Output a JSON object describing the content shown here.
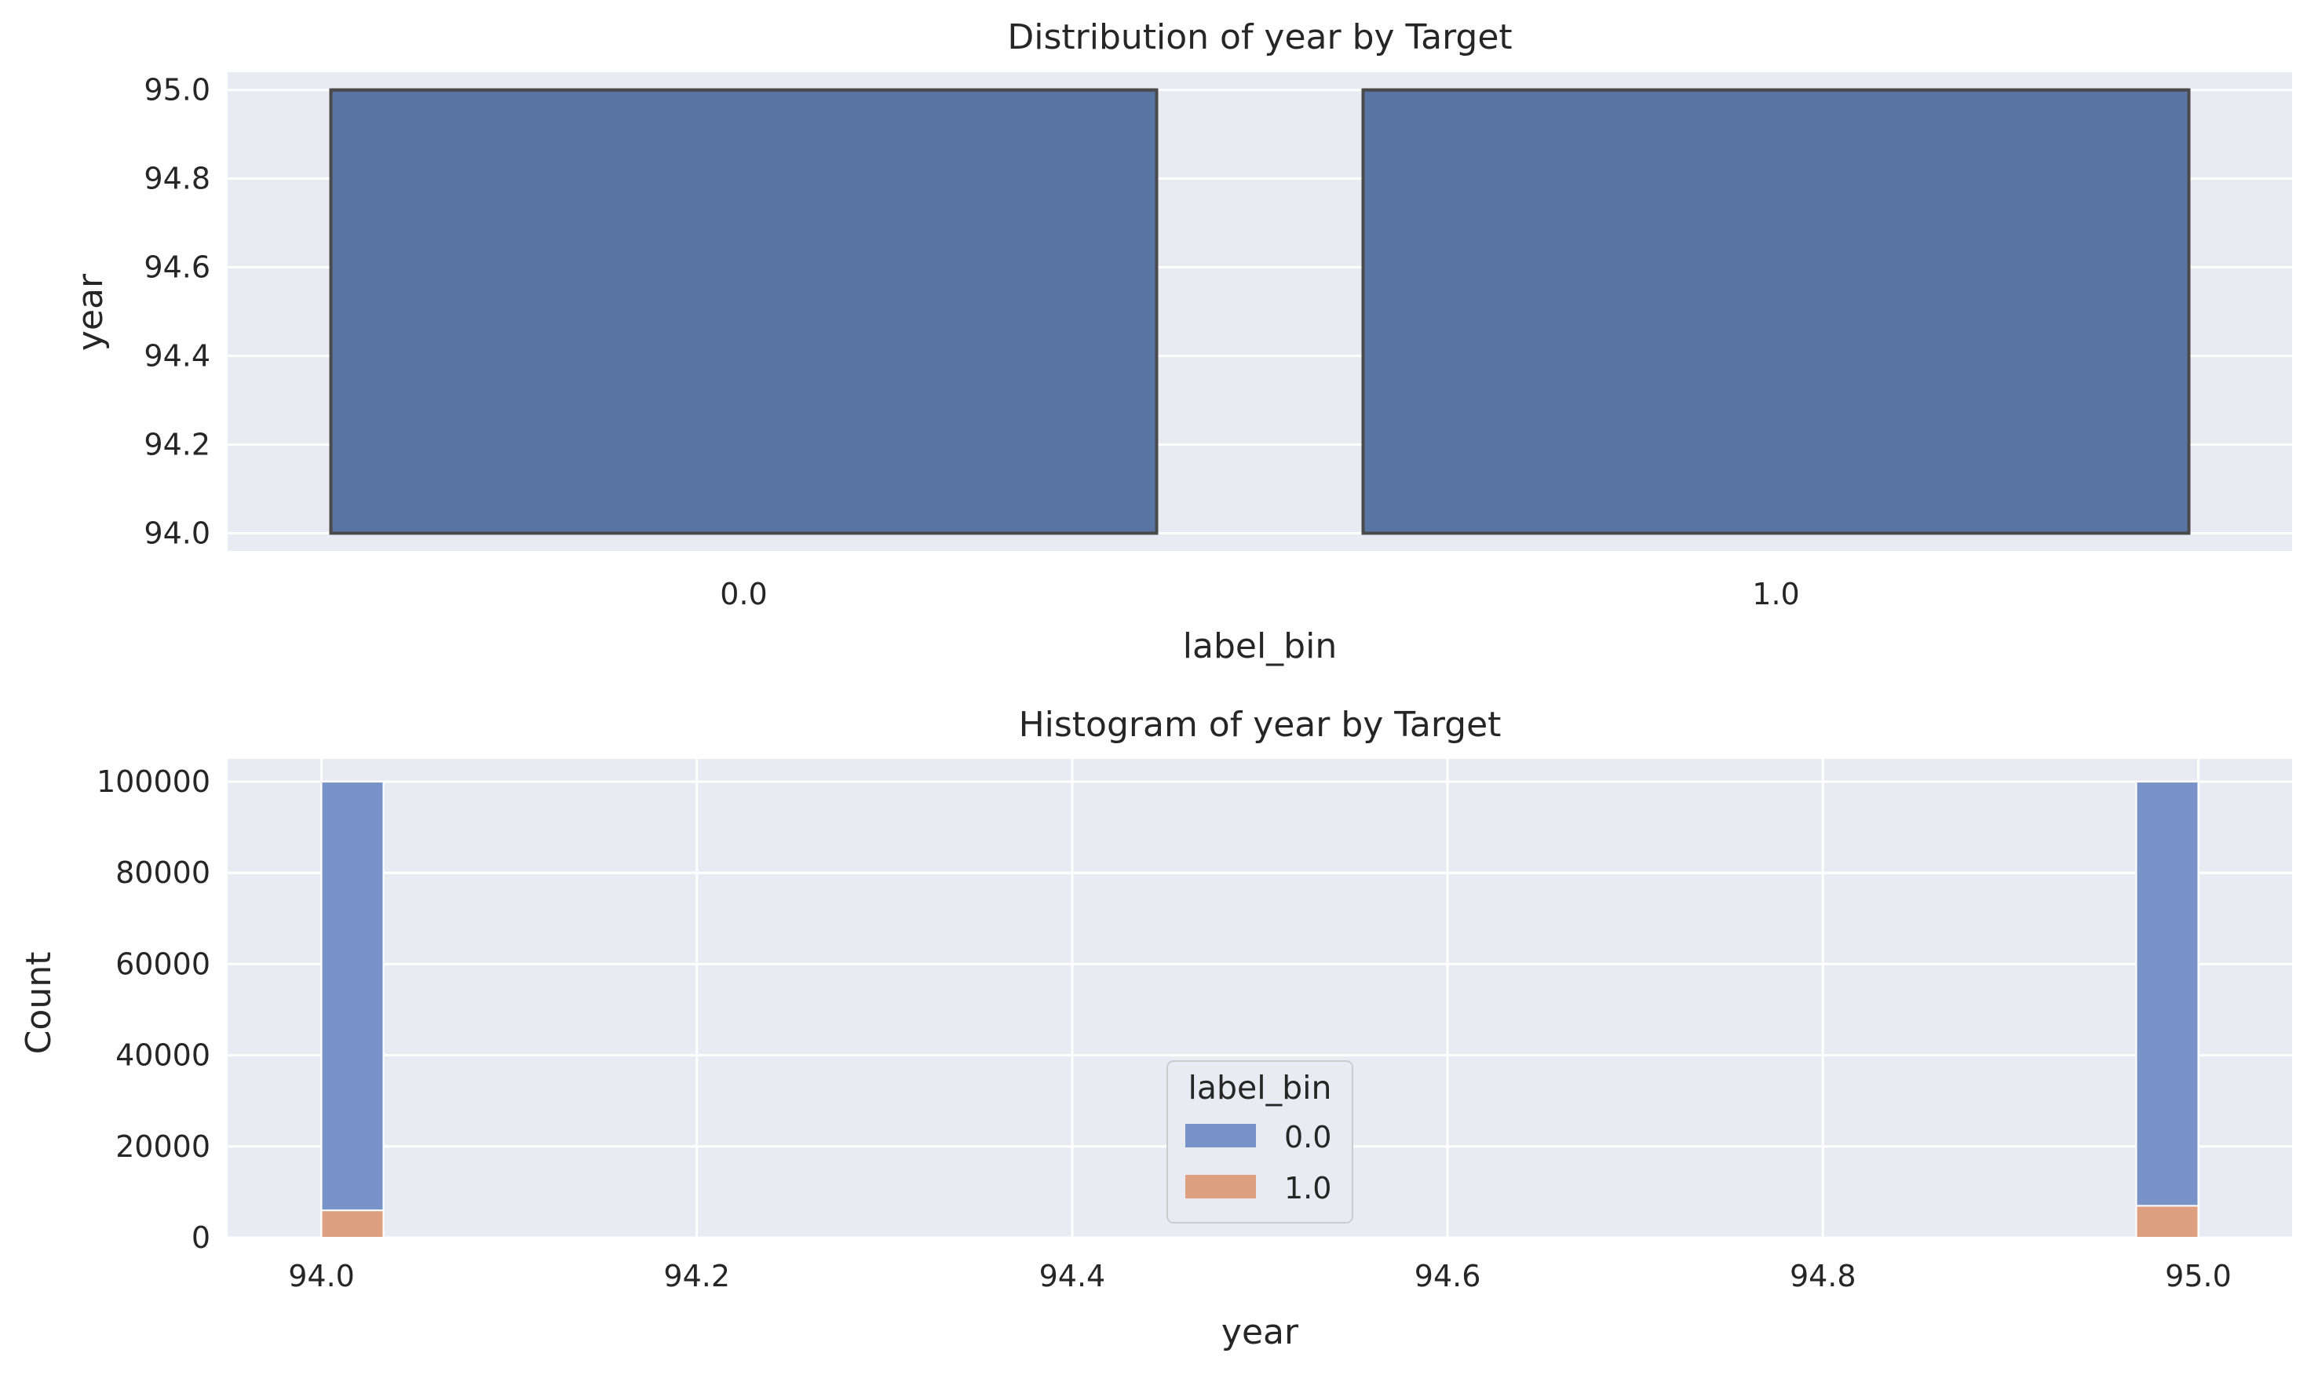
{
  "colors": {
    "background": "#eaeaf2",
    "grid": "#ffffff",
    "series_0": "#5875a4",
    "series_0_hist": "#7793c7",
    "series_1_hist": "#dd9f7f",
    "box_edge": "#4a4a4a",
    "text": "#262626"
  },
  "chart_data": [
    {
      "type": "box",
      "title": "Distribution of year by Target",
      "xlabel": "label_bin",
      "ylabel": "year",
      "categories": [
        "0.0",
        "1.0"
      ],
      "boxes": [
        {
          "category": "0.0",
          "min": 94.0,
          "q1": 94.0,
          "median": 95.0,
          "q3": 95.0,
          "max": 95.0
        },
        {
          "category": "1.0",
          "min": 94.0,
          "q1": 94.0,
          "median": 95.0,
          "q3": 95.0,
          "max": 95.0
        }
      ],
      "ylim": [
        93.96,
        95.04
      ],
      "yticks": [
        "94.0",
        "94.2",
        "94.4",
        "94.6",
        "94.8",
        "95.0"
      ],
      "grid": true
    },
    {
      "type": "bar",
      "subtype": "stacked-histogram",
      "title": "Histogram of year by Target",
      "xlabel": "year",
      "ylabel": "Count",
      "xlim": [
        93.95,
        95.05
      ],
      "ylim": [
        0,
        105000
      ],
      "xticks": [
        "94.0",
        "94.2",
        "94.4",
        "94.6",
        "94.8",
        "95.0"
      ],
      "yticks": [
        "0",
        "20000",
        "40000",
        "60000",
        "80000",
        "100000"
      ],
      "bins": [
        {
          "x0": 94.0,
          "x1": 94.033
        },
        {
          "x0": 94.967,
          "x1": 95.0
        }
      ],
      "series": [
        {
          "name": "0.0",
          "values": [
            94000,
            93000
          ]
        },
        {
          "name": "1.0",
          "values": [
            6000,
            7000
          ]
        }
      ],
      "legend": {
        "title": "label_bin",
        "position": "lower-center"
      },
      "grid": true
    }
  ]
}
